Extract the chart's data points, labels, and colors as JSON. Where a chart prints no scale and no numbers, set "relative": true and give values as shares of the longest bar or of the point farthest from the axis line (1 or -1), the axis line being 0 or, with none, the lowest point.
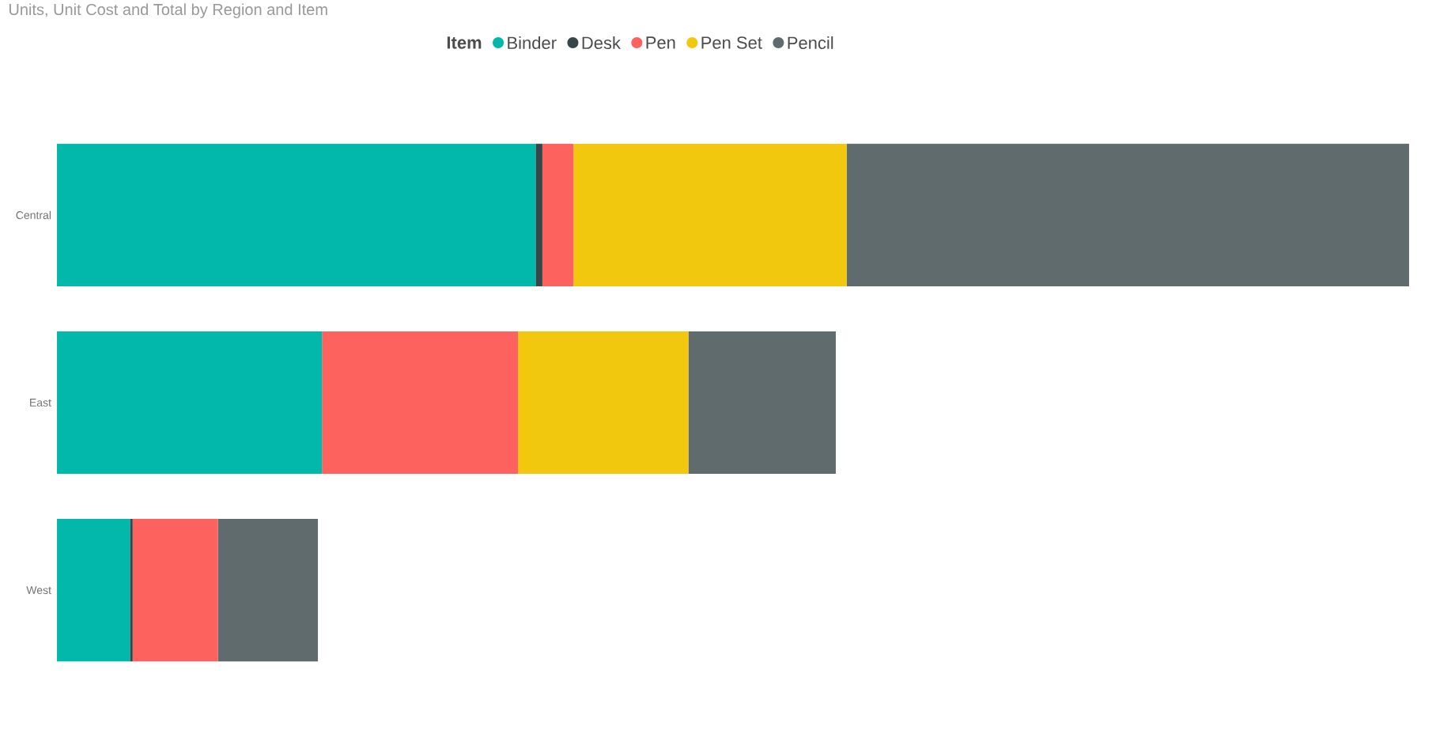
{
  "chart_data": {
    "type": "bar",
    "orientation": "horizontal",
    "stacked": true,
    "relative": true,
    "title": "Units, Unit Cost and Total by Region and Item",
    "legend_title": "Item",
    "legend": "top",
    "categories": [
      "Central",
      "East",
      "West"
    ],
    "series": [
      {
        "name": "Binder",
        "color": "#01b8aa",
        "values": [
          0.354,
          0.196,
          0.054
        ]
      },
      {
        "name": "Desk",
        "color": "#374649",
        "values": [
          0.005,
          0,
          0.002
        ]
      },
      {
        "name": "Pen",
        "color": "#fd625e",
        "values": [
          0.023,
          0.145,
          0.063
        ]
      },
      {
        "name": "Pen Set",
        "color": "#f2c80f",
        "values": [
          0.202,
          0.126,
          0
        ]
      },
      {
        "name": "Pencil",
        "color": "#5f6b6d",
        "values": [
          0.416,
          0.109,
          0.074
        ]
      }
    ]
  }
}
